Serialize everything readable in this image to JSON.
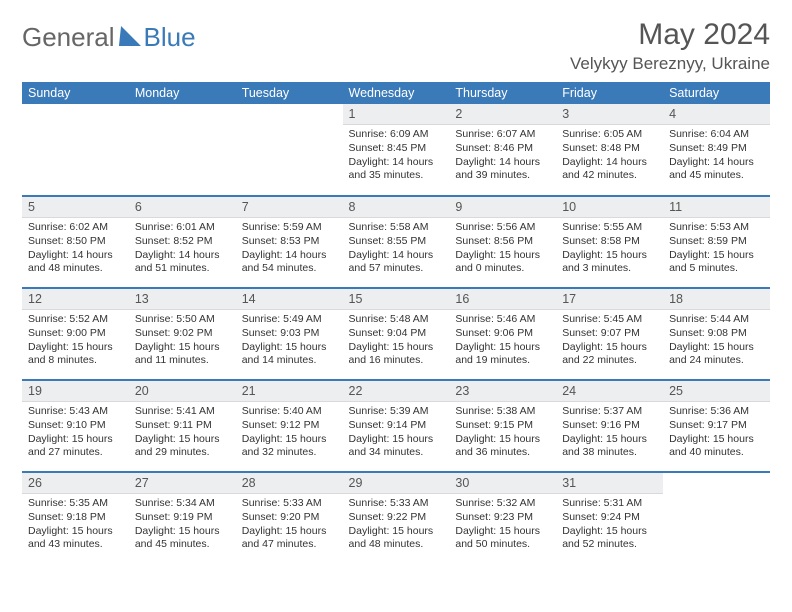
{
  "logo": {
    "part1": "General",
    "part2": "Blue"
  },
  "title": {
    "month": "May 2024",
    "location": "Velykyy Bereznyy, Ukraine"
  },
  "colors": {
    "header_bg": "#3a7ab8",
    "header_fg": "#ffffff",
    "daynum_bg": "#eceeef",
    "row_divider": "#3a7ab8",
    "page_bg": "#ffffff",
    "text": "#333333",
    "title_text": "#555555"
  },
  "typography": {
    "month_fontsize": 30,
    "location_fontsize": 17,
    "header_fontsize": 12.5,
    "daynum_fontsize": 12.5,
    "cell_fontsize": 10.5
  },
  "weekdays": [
    "Sunday",
    "Monday",
    "Tuesday",
    "Wednesday",
    "Thursday",
    "Friday",
    "Saturday"
  ],
  "weeks": [
    [
      null,
      null,
      null,
      {
        "n": "1",
        "sunrise": "6:09 AM",
        "sunset": "8:45 PM",
        "dl_h": "14",
        "dl_m": "35"
      },
      {
        "n": "2",
        "sunrise": "6:07 AM",
        "sunset": "8:46 PM",
        "dl_h": "14",
        "dl_m": "39"
      },
      {
        "n": "3",
        "sunrise": "6:05 AM",
        "sunset": "8:48 PM",
        "dl_h": "14",
        "dl_m": "42"
      },
      {
        "n": "4",
        "sunrise": "6:04 AM",
        "sunset": "8:49 PM",
        "dl_h": "14",
        "dl_m": "45"
      }
    ],
    [
      {
        "n": "5",
        "sunrise": "6:02 AM",
        "sunset": "8:50 PM",
        "dl_h": "14",
        "dl_m": "48"
      },
      {
        "n": "6",
        "sunrise": "6:01 AM",
        "sunset": "8:52 PM",
        "dl_h": "14",
        "dl_m": "51"
      },
      {
        "n": "7",
        "sunrise": "5:59 AM",
        "sunset": "8:53 PM",
        "dl_h": "14",
        "dl_m": "54"
      },
      {
        "n": "8",
        "sunrise": "5:58 AM",
        "sunset": "8:55 PM",
        "dl_h": "14",
        "dl_m": "57"
      },
      {
        "n": "9",
        "sunrise": "5:56 AM",
        "sunset": "8:56 PM",
        "dl_h": "15",
        "dl_m": "0"
      },
      {
        "n": "10",
        "sunrise": "5:55 AM",
        "sunset": "8:58 PM",
        "dl_h": "15",
        "dl_m": "3"
      },
      {
        "n": "11",
        "sunrise": "5:53 AM",
        "sunset": "8:59 PM",
        "dl_h": "15",
        "dl_m": "5"
      }
    ],
    [
      {
        "n": "12",
        "sunrise": "5:52 AM",
        "sunset": "9:00 PM",
        "dl_h": "15",
        "dl_m": "8"
      },
      {
        "n": "13",
        "sunrise": "5:50 AM",
        "sunset": "9:02 PM",
        "dl_h": "15",
        "dl_m": "11"
      },
      {
        "n": "14",
        "sunrise": "5:49 AM",
        "sunset": "9:03 PM",
        "dl_h": "15",
        "dl_m": "14"
      },
      {
        "n": "15",
        "sunrise": "5:48 AM",
        "sunset": "9:04 PM",
        "dl_h": "15",
        "dl_m": "16"
      },
      {
        "n": "16",
        "sunrise": "5:46 AM",
        "sunset": "9:06 PM",
        "dl_h": "15",
        "dl_m": "19"
      },
      {
        "n": "17",
        "sunrise": "5:45 AM",
        "sunset": "9:07 PM",
        "dl_h": "15",
        "dl_m": "22"
      },
      {
        "n": "18",
        "sunrise": "5:44 AM",
        "sunset": "9:08 PM",
        "dl_h": "15",
        "dl_m": "24"
      }
    ],
    [
      {
        "n": "19",
        "sunrise": "5:43 AM",
        "sunset": "9:10 PM",
        "dl_h": "15",
        "dl_m": "27"
      },
      {
        "n": "20",
        "sunrise": "5:41 AM",
        "sunset": "9:11 PM",
        "dl_h": "15",
        "dl_m": "29"
      },
      {
        "n": "21",
        "sunrise": "5:40 AM",
        "sunset": "9:12 PM",
        "dl_h": "15",
        "dl_m": "32"
      },
      {
        "n": "22",
        "sunrise": "5:39 AM",
        "sunset": "9:14 PM",
        "dl_h": "15",
        "dl_m": "34"
      },
      {
        "n": "23",
        "sunrise": "5:38 AM",
        "sunset": "9:15 PM",
        "dl_h": "15",
        "dl_m": "36"
      },
      {
        "n": "24",
        "sunrise": "5:37 AM",
        "sunset": "9:16 PM",
        "dl_h": "15",
        "dl_m": "38"
      },
      {
        "n": "25",
        "sunrise": "5:36 AM",
        "sunset": "9:17 PM",
        "dl_h": "15",
        "dl_m": "40"
      }
    ],
    [
      {
        "n": "26",
        "sunrise": "5:35 AM",
        "sunset": "9:18 PM",
        "dl_h": "15",
        "dl_m": "43"
      },
      {
        "n": "27",
        "sunrise": "5:34 AM",
        "sunset": "9:19 PM",
        "dl_h": "15",
        "dl_m": "45"
      },
      {
        "n": "28",
        "sunrise": "5:33 AM",
        "sunset": "9:20 PM",
        "dl_h": "15",
        "dl_m": "47"
      },
      {
        "n": "29",
        "sunrise": "5:33 AM",
        "sunset": "9:22 PM",
        "dl_h": "15",
        "dl_m": "48"
      },
      {
        "n": "30",
        "sunrise": "5:32 AM",
        "sunset": "9:23 PM",
        "dl_h": "15",
        "dl_m": "50"
      },
      {
        "n": "31",
        "sunrise": "5:31 AM",
        "sunset": "9:24 PM",
        "dl_h": "15",
        "dl_m": "52"
      },
      null
    ]
  ],
  "labels": {
    "sunrise": "Sunrise:",
    "sunset": "Sunset:",
    "daylight_prefix": "Daylight:",
    "hours_word": "hours",
    "and_word": "and",
    "minutes_word": "minutes."
  }
}
